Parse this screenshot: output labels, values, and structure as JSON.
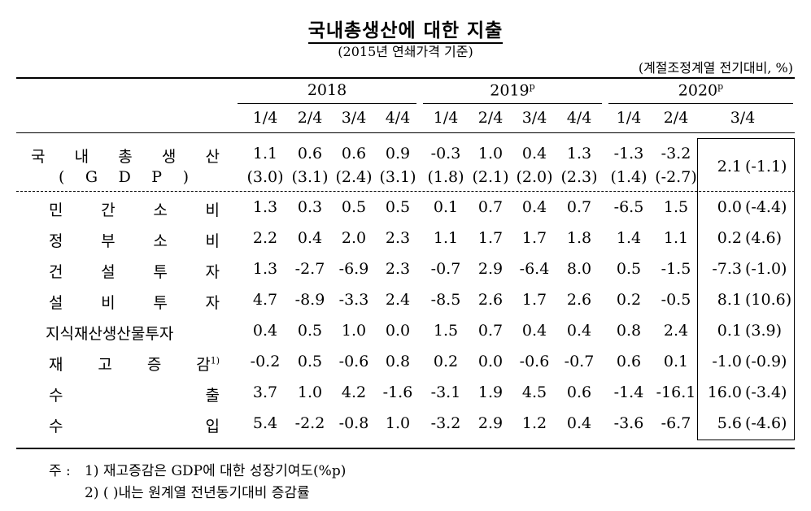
{
  "title": "국내총생산에 대한 지출",
  "subtitle": "(2015년 연쇄가격 기준)",
  "unit": "(계절조정계열 전기대비, %)",
  "years": [
    {
      "label": "2018",
      "sup": ""
    },
    {
      "label": "2019",
      "sup": "p"
    },
    {
      "label": "2020",
      "sup": "p"
    }
  ],
  "quarters": [
    "1/4",
    "2/4",
    "3/4",
    "4/4",
    "1/4",
    "2/4",
    "3/4",
    "4/4",
    "1/4",
    "2/4",
    "3/4"
  ],
  "gdp": {
    "label_chars": [
      "국",
      "내",
      "총",
      "생",
      "산"
    ],
    "sub_chars": [
      "(",
      "G",
      "D",
      "P",
      ")"
    ],
    "values": [
      "1.1",
      "0.6",
      "0.6",
      "0.9",
      "-0.3",
      "1.0",
      "0.4",
      "1.3",
      "-1.3",
      "-3.2",
      "2.1"
    ],
    "yoy": [
      "(3.0)",
      "(3.1)",
      "(2.4)",
      "(3.1)",
      "(1.8)",
      "(2.1)",
      "(2.0)",
      "(2.3)",
      "(1.4)",
      "(-2.7)",
      "(-1.1)"
    ]
  },
  "rows": [
    {
      "label_chars": [
        "민",
        "간",
        "소",
        "비"
      ],
      "sup": "",
      "values": [
        "1.3",
        "0.3",
        "0.5",
        "0.5",
        "0.1",
        "0.7",
        "0.4",
        "0.7",
        "-6.5",
        "1.5",
        "0.0"
      ],
      "last_yoy": "(-4.4)"
    },
    {
      "label_chars": [
        "정",
        "부",
        "소",
        "비"
      ],
      "sup": "",
      "values": [
        "2.2",
        "0.4",
        "2.0",
        "2.3",
        "1.1",
        "1.7",
        "1.7",
        "1.8",
        "1.4",
        "1.1",
        "0.2"
      ],
      "last_yoy": "(4.6)"
    },
    {
      "label_chars": [
        "건",
        "설",
        "투",
        "자"
      ],
      "sup": "",
      "values": [
        "1.3",
        "-2.7",
        "-6.9",
        "2.3",
        "-0.7",
        "2.9",
        "-6.4",
        "8.0",
        "0.5",
        "-1.5",
        "-7.3"
      ],
      "last_yoy": "(-1.0)"
    },
    {
      "label_chars": [
        "설",
        "비",
        "투",
        "자"
      ],
      "sup": "",
      "values": [
        "4.7",
        "-8.9",
        "-3.3",
        "2.4",
        "-8.5",
        "2.6",
        "1.7",
        "2.6",
        "0.2",
        "-0.5",
        "8.1"
      ],
      "last_yoy": "(10.6)"
    },
    {
      "label_chars": [
        "지식재산생산물투자"
      ],
      "sup": "",
      "values": [
        "0.4",
        "0.5",
        "1.0",
        "0.0",
        "1.5",
        "0.7",
        "0.4",
        "0.4",
        "0.8",
        "2.4",
        "0.1"
      ],
      "last_yoy": "(3.9)"
    },
    {
      "label_chars": [
        "재",
        "고",
        "증",
        "감"
      ],
      "sup": "1)",
      "values": [
        "-0.2",
        "0.5",
        "-0.6",
        "0.8",
        "0.2",
        "0.0",
        "-0.6",
        "-0.7",
        "0.6",
        "0.1",
        "-1.0"
      ],
      "last_yoy": "(-0.9)"
    },
    {
      "label_chars": [
        "수",
        "출"
      ],
      "sup": "",
      "values": [
        "3.7",
        "1.0",
        "4.2",
        "-1.6",
        "-3.1",
        "1.9",
        "4.5",
        "0.6",
        "-1.4",
        "-16.1",
        "16.0"
      ],
      "last_yoy": "(-3.4)"
    },
    {
      "label_chars": [
        "수",
        "입"
      ],
      "sup": "",
      "values": [
        "5.4",
        "-2.2",
        "-0.8",
        "1.0",
        "-3.2",
        "2.9",
        "1.2",
        "0.4",
        "-3.6",
        "-6.7",
        "5.6"
      ],
      "last_yoy": "(-4.6)"
    }
  ],
  "notes": {
    "prefix": "주 :",
    "note1": "1) 재고증감은 GDP에 대한 성장기여도(%p)",
    "note2": "2) (   )내는 원계열 전년동기대비 증감률"
  }
}
